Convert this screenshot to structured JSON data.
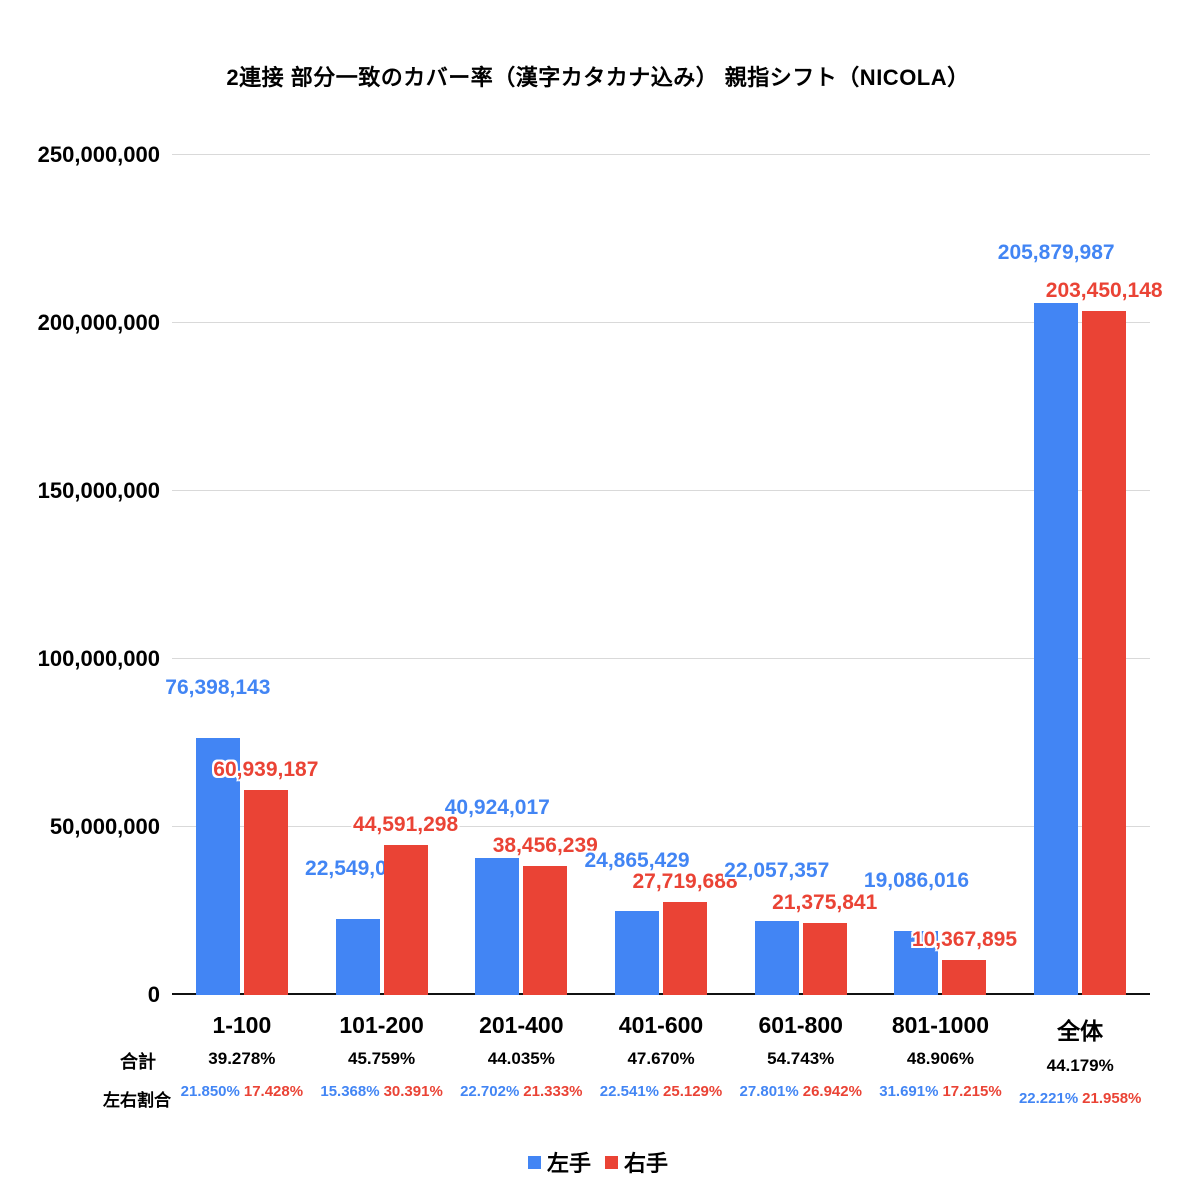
{
  "row_headers": {
    "total": "合計",
    "ratio": "左右割合"
  },
  "chart_data": {
    "type": "bar",
    "title": "2連接 部分一致のカバー率（漢字カタカナ込み） 親指シフト（NICOLA）",
    "categories": [
      "1-100",
      "101-200",
      "201-400",
      "401-600",
      "601-800",
      "801-1000",
      "全体"
    ],
    "series": [
      {
        "name": "左手",
        "color": "#4285F4",
        "values": [
          76398143,
          22549025,
          40924017,
          24865429,
          22057357,
          19086016,
          205879987
        ],
        "labels": [
          "76,398,143",
          "22,549,025",
          "40,924,017",
          "24,865,429",
          "22,057,357",
          "19,086,016",
          "205,879,987"
        ]
      },
      {
        "name": "右手",
        "color": "#EA4335",
        "values": [
          60939187,
          44591298,
          38456239,
          27719688,
          21375841,
          10367895,
          203450148
        ],
        "labels": [
          "60,939,187",
          "44,591,298",
          "38,456,239",
          "27,719,688",
          "21,375,841",
          "10,367,895",
          "203,450,148"
        ]
      }
    ],
    "totals_percent": [
      "39.278%",
      "45.759%",
      "44.035%",
      "47.670%",
      "54.743%",
      "48.906%",
      "44.179%"
    ],
    "lr_ratio_percent": [
      [
        "21.850%",
        "17.428%"
      ],
      [
        "15.368%",
        "30.391%"
      ],
      [
        "22.702%",
        "21.333%"
      ],
      [
        "22.541%",
        "25.129%"
      ],
      [
        "27.801%",
        "26.942%"
      ],
      [
        "31.691%",
        "17.215%"
      ],
      [
        "22.221%",
        "21.958%"
      ]
    ],
    "y_ticks": [
      "0",
      "50,000,000",
      "100,000,000",
      "150,000,000",
      "200,000,000",
      "250,000,000"
    ],
    "ylim": [
      0,
      250000000
    ],
    "grid": true,
    "legend_position": "bottom"
  }
}
